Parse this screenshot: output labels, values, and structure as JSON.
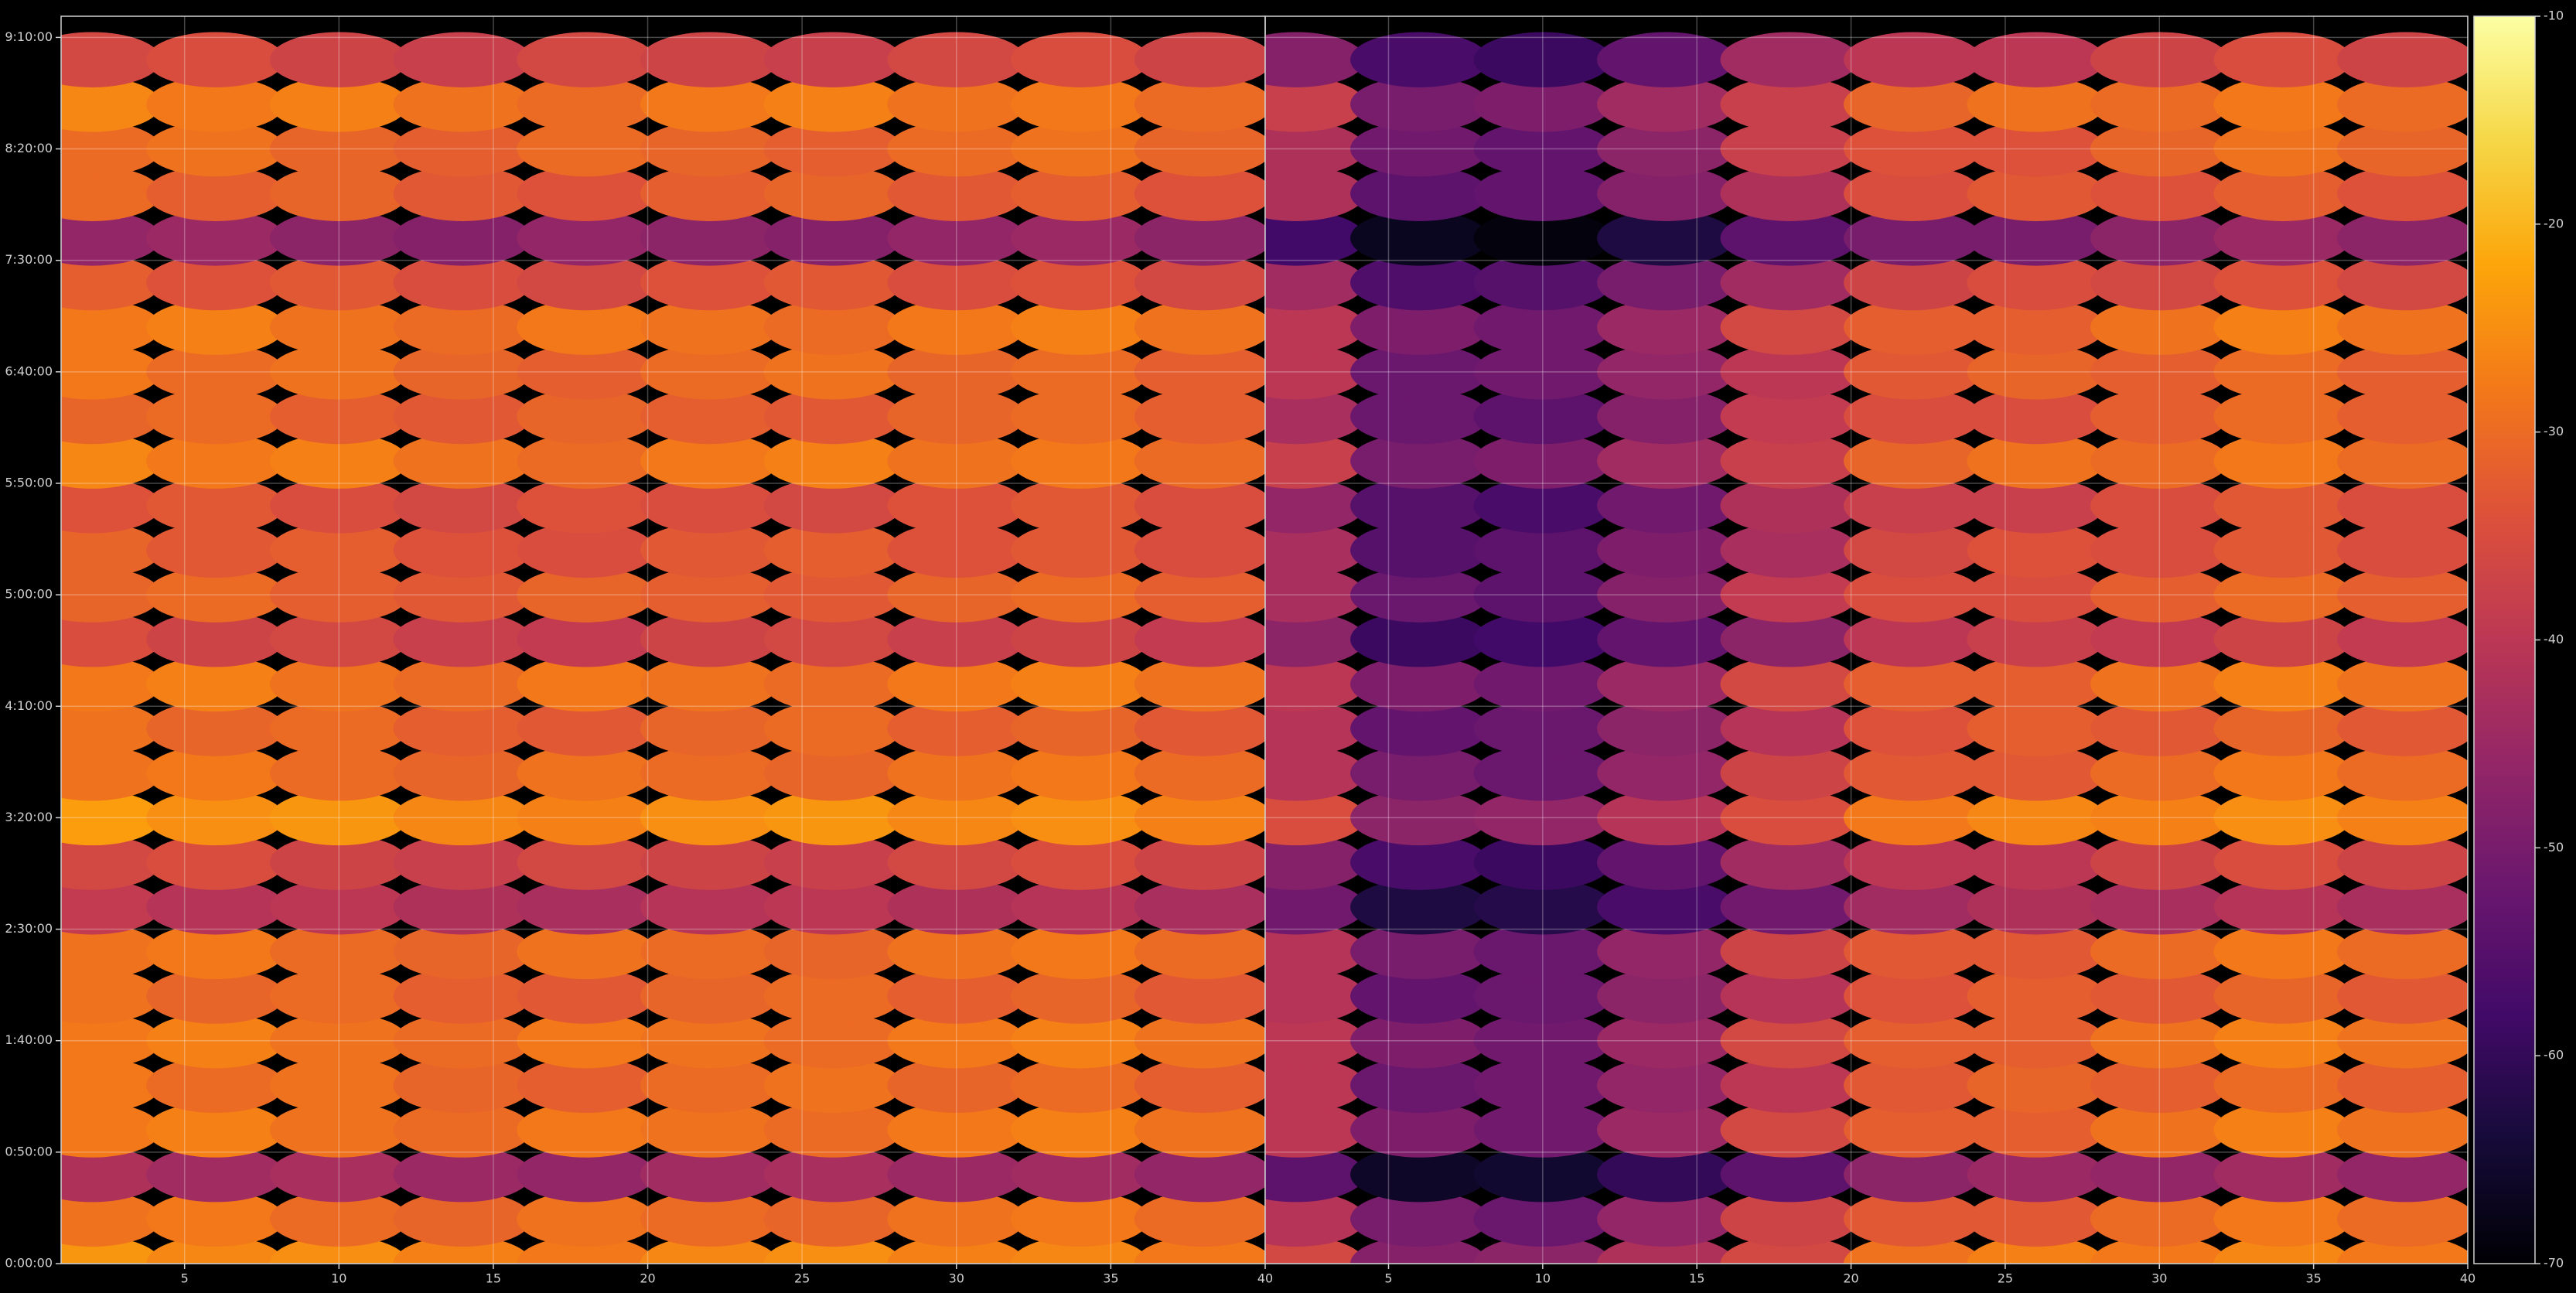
{
  "chart_data": {
    "type": "heatmap",
    "colormap": "inferno",
    "grid": true,
    "y": [
      0,
      1200,
      2400,
      3600,
      4800,
      6000,
      7200,
      8400,
      9600,
      10800,
      12000,
      13200,
      14400,
      15600,
      16800,
      18000,
      19200,
      20400,
      21600,
      22800,
      24000,
      25200,
      26400,
      27600,
      28800,
      30000,
      31200,
      32400
    ],
    "ylim": [
      0,
      33570
    ],
    "yticks": [
      {
        "value": 0,
        "label": "0:00:00"
      },
      {
        "value": 3000,
        "label": "0:50:00"
      },
      {
        "value": 6000,
        "label": "1:40:00"
      },
      {
        "value": 9000,
        "label": "2:30:00"
      },
      {
        "value": 12000,
        "label": "3:20:00"
      },
      {
        "value": 15000,
        "label": "4:10:00"
      },
      {
        "value": 18000,
        "label": "5:00:00"
      },
      {
        "value": 21000,
        "label": "5:50:00"
      },
      {
        "value": 24000,
        "label": "6:40:00"
      },
      {
        "value": 27000,
        "label": "7:30:00"
      },
      {
        "value": 30000,
        "label": "8:20:00"
      },
      {
        "value": 33000,
        "label": "9:10:00"
      }
    ],
    "colorbar": {
      "lim": [
        -70,
        -10
      ],
      "ticks": [
        -70,
        -60,
        -50,
        -40,
        -30,
        -20,
        -10
      ]
    },
    "panels": [
      {
        "x": [
          2,
          6,
          10,
          14,
          18,
          22,
          26,
          30,
          34,
          38
        ],
        "xlim": [
          1,
          40
        ],
        "xticks": [
          5,
          10,
          15,
          20,
          25,
          30,
          35,
          40
        ],
        "values": [
          [
            -24,
            -26,
            -25,
            -27,
            -28,
            -26,
            -25,
            -27,
            -26,
            -28
          ],
          [
            -29,
            -28,
            -30,
            -31,
            -29,
            -30,
            -31,
            -29,
            -28,
            -30
          ],
          [
            -42,
            -44,
            -43,
            -45,
            -46,
            -44,
            -43,
            -45,
            -44,
            -46
          ],
          [
            -28,
            -27,
            -29,
            -30,
            -28,
            -29,
            -30,
            -28,
            -27,
            -29
          ],
          [
            -28,
            -30,
            -29,
            -31,
            -32,
            -30,
            -29,
            -31,
            -30,
            -32
          ],
          [
            -28,
            -27,
            -29,
            -30,
            -28,
            -29,
            -30,
            -28,
            -27,
            -29
          ],
          [
            -29,
            -31,
            -30,
            -32,
            -33,
            -31,
            -30,
            -32,
            -31,
            -33
          ],
          [
            -29,
            -28,
            -30,
            -31,
            -29,
            -30,
            -31,
            -29,
            -28,
            -30
          ],
          [
            -39,
            -41,
            -40,
            -42,
            -43,
            -41,
            -40,
            -42,
            -41,
            -43
          ],
          [
            -36,
            -35,
            -37,
            -38,
            -36,
            -37,
            -38,
            -36,
            -35,
            -37
          ],
          [
            -23,
            -25,
            -24,
            -26,
            -27,
            -25,
            -24,
            -26,
            -25,
            -27
          ],
          [
            -29,
            -28,
            -30,
            -31,
            -29,
            -30,
            -31,
            -29,
            -28,
            -30
          ],
          [
            -29,
            -31,
            -30,
            -32,
            -33,
            -31,
            -30,
            -32,
            -31,
            -33
          ],
          [
            -28,
            -27,
            -29,
            -30,
            -28,
            -29,
            -30,
            -28,
            -27,
            -29
          ],
          [
            -35,
            -37,
            -36,
            -38,
            -39,
            -37,
            -36,
            -38,
            -37,
            -39
          ],
          [
            -31,
            -30,
            -32,
            -33,
            -31,
            -32,
            -33,
            -31,
            -30,
            -32
          ],
          [
            -31,
            -33,
            -32,
            -34,
            -35,
            -33,
            -32,
            -34,
            -33,
            -35
          ],
          [
            -34,
            -33,
            -35,
            -36,
            -34,
            -35,
            -36,
            -34,
            -33,
            -35
          ],
          [
            -26,
            -28,
            -27,
            -29,
            -30,
            -28,
            -27,
            -29,
            -28,
            -30
          ],
          [
            -31,
            -30,
            -32,
            -33,
            -31,
            -32,
            -33,
            -31,
            -30,
            -32
          ],
          [
            -28,
            -30,
            -29,
            -31,
            -32,
            -30,
            -29,
            -31,
            -30,
            -32
          ],
          [
            -28,
            -27,
            -29,
            -30,
            -28,
            -29,
            -30,
            -28,
            -27,
            -29
          ],
          [
            -32,
            -34,
            -33,
            -35,
            -36,
            -34,
            -33,
            -35,
            -34,
            -36
          ],
          [
            -46,
            -45,
            -47,
            -48,
            -46,
            -47,
            -48,
            -46,
            -45,
            -47
          ],
          [
            -30,
            -32,
            -31,
            -33,
            -34,
            -32,
            -31,
            -33,
            -32,
            -34
          ],
          [
            -30,
            -29,
            -31,
            -32,
            -30,
            -31,
            -32,
            -30,
            -29,
            -31
          ],
          [
            -26,
            -28,
            -27,
            -29,
            -30,
            -28,
            -27,
            -29,
            -28,
            -30
          ],
          [
            -36,
            -35,
            -37,
            -38,
            -36,
            -37,
            -38,
            -36,
            -35,
            -37
          ]
        ]
      },
      {
        "x": [
          2,
          6,
          10,
          14,
          18,
          22,
          26,
          30,
          34,
          38
        ],
        "xlim": [
          1,
          40
        ],
        "xticks": [
          5,
          10,
          15,
          20,
          25,
          30,
          35,
          40
        ],
        "values": [
          [
            -36,
            -48,
            -47,
            -42,
            -36,
            -29,
            -27,
            -28,
            -26,
            -28
          ],
          [
            -41,
            -50,
            -52,
            -46,
            -37,
            -33,
            -33,
            -30,
            -28,
            -30
          ],
          [
            -54,
            -66,
            -65,
            -60,
            -54,
            -47,
            -45,
            -46,
            -44,
            -46
          ],
          [
            -40,
            -49,
            -51,
            -45,
            -36,
            -32,
            -32,
            -29,
            -27,
            -29
          ],
          [
            -40,
            -52,
            -51,
            -46,
            -40,
            -33,
            -31,
            -32,
            -30,
            -32
          ],
          [
            -40,
            -49,
            -51,
            -45,
            -36,
            -32,
            -32,
            -29,
            -27,
            -29
          ],
          [
            -41,
            -53,
            -52,
            -47,
            -41,
            -34,
            -32,
            -33,
            -31,
            -33
          ],
          [
            -41,
            -50,
            -52,
            -46,
            -37,
            -33,
            -33,
            -30,
            -28,
            -30
          ],
          [
            -51,
            -63,
            -62,
            -57,
            -51,
            -44,
            -42,
            -43,
            -41,
            -43
          ],
          [
            -48,
            -57,
            -59,
            -53,
            -44,
            -40,
            -40,
            -37,
            -35,
            -37
          ],
          [
            -35,
            -47,
            -46,
            -41,
            -35,
            -28,
            -26,
            -27,
            -25,
            -27
          ],
          [
            -41,
            -50,
            -52,
            -46,
            -37,
            -33,
            -33,
            -30,
            -28,
            -30
          ],
          [
            -41,
            -53,
            -52,
            -47,
            -41,
            -34,
            -32,
            -33,
            -31,
            -33
          ],
          [
            -40,
            -49,
            -51,
            -45,
            -36,
            -32,
            -32,
            -29,
            -27,
            -29
          ],
          [
            -47,
            -59,
            -58,
            -53,
            -47,
            -40,
            -38,
            -39,
            -37,
            -39
          ],
          [
            -43,
            -52,
            -54,
            -48,
            -39,
            -35,
            -35,
            -32,
            -30,
            -32
          ],
          [
            -43,
            -55,
            -54,
            -49,
            -43,
            -36,
            -34,
            -35,
            -33,
            -35
          ],
          [
            -46,
            -55,
            -57,
            -51,
            -42,
            -38,
            -38,
            -35,
            -33,
            -35
          ],
          [
            -38,
            -50,
            -49,
            -44,
            -38,
            -31,
            -29,
            -30,
            -28,
            -30
          ],
          [
            -43,
            -52,
            -54,
            -48,
            -39,
            -35,
            -35,
            -32,
            -30,
            -32
          ],
          [
            -40,
            -52,
            -51,
            -46,
            -40,
            -33,
            -31,
            -32,
            -30,
            -32
          ],
          [
            -40,
            -49,
            -51,
            -45,
            -36,
            -32,
            -32,
            -29,
            -27,
            -29
          ],
          [
            -44,
            -56,
            -55,
            -50,
            -44,
            -37,
            -35,
            -36,
            -34,
            -36
          ],
          [
            -58,
            -67,
            -69,
            -63,
            -54,
            -50,
            -50,
            -47,
            -45,
            -47
          ],
          [
            -42,
            -54,
            -53,
            -48,
            -42,
            -35,
            -33,
            -34,
            -32,
            -34
          ],
          [
            -42,
            -51,
            -53,
            -47,
            -38,
            -34,
            -34,
            -31,
            -29,
            -31
          ],
          [
            -38,
            -50,
            -49,
            -44,
            -38,
            -31,
            -29,
            -30,
            -28,
            -30
          ],
          [
            -48,
            -57,
            -59,
            -53,
            -44,
            -40,
            -40,
            -37,
            -35,
            -37
          ]
        ]
      }
    ]
  }
}
